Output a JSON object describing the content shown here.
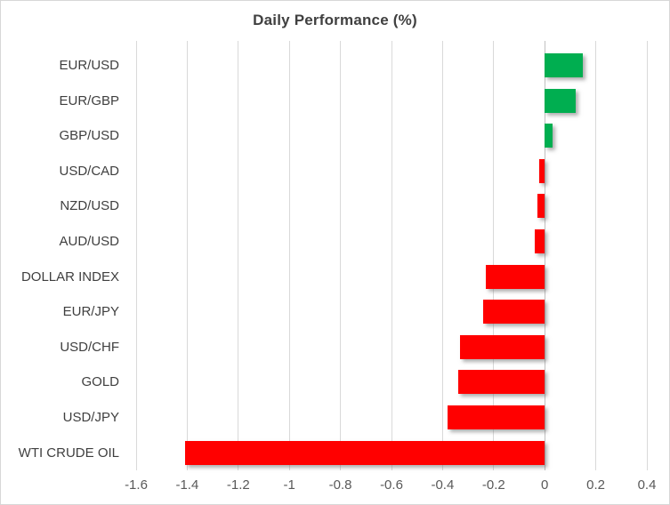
{
  "chart": {
    "title": "Daily Performance (%)"
  },
  "chart_data": {
    "type": "bar",
    "orientation": "horizontal",
    "title": "Daily Performance (%)",
    "categories": [
      "EUR/USD",
      "EUR/GBP",
      "GBP/USD",
      "USD/CAD",
      "NZD/USD",
      "AUD/USD",
      "DOLLAR INDEX",
      "EUR/JPY",
      "USD/CHF",
      "GOLD",
      "USD/JPY",
      "WTI CRUDE OIL"
    ],
    "values": [
      0.15,
      0.12,
      0.03,
      -0.02,
      -0.03,
      -0.04,
      -0.23,
      -0.24,
      -0.33,
      -0.34,
      -0.38,
      -1.41
    ],
    "xlabel": "",
    "ylabel": "",
    "xlim": [
      -1.6,
      0.4
    ],
    "x_ticks": [
      -1.6,
      -1.4,
      -1.2,
      -1,
      -0.8,
      -0.6,
      -0.4,
      -0.2,
      0,
      0.2,
      0.4
    ],
    "x_tick_labels": [
      "-1.6",
      "-1.4",
      "-1.2",
      "-1",
      "-0.8",
      "-0.6",
      "-0.4",
      "-0.2",
      "0",
      "0.2",
      "0.4"
    ],
    "grid": true,
    "legend": false,
    "colors": {
      "positive": "#00AE50",
      "negative": "#FF0000",
      "gridline": "#D9D9D9",
      "zero_line": "#C0C0C0",
      "title_text": "#404040",
      "category_text": "#3F3F3F",
      "tick_text": "#595959",
      "border": "#D7D7D7"
    }
  }
}
